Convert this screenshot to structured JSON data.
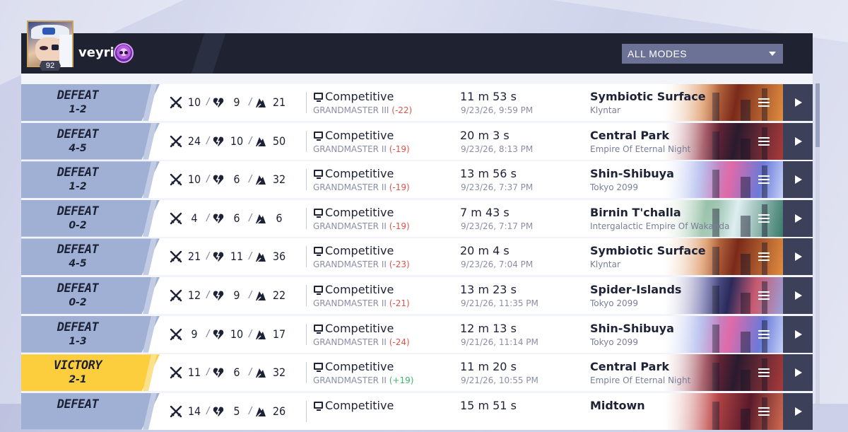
{
  "header": {
    "username": "veyri",
    "level": "92",
    "mode_filter": "ALL MODES"
  },
  "matches": [
    {
      "result": "DEFEAT",
      "score": "1-2",
      "kills": "10",
      "deaths": "9",
      "assists": "21",
      "mode": "Competitive",
      "rank": "GRANDMASTER III",
      "delta": "(-22)",
      "delta_sign": "neg",
      "duration": "11 m 53 s",
      "datetime": "9/23/26, 9:59 PM",
      "map": "Symbiotic Surface",
      "region": "Klyntar",
      "map_style": "symbiotic"
    },
    {
      "result": "DEFEAT",
      "score": "4-5",
      "kills": "24",
      "deaths": "10",
      "assists": "50",
      "mode": "Competitive",
      "rank": "GRANDMASTER II",
      "delta": "(-19)",
      "delta_sign": "neg",
      "duration": "20 m 3 s",
      "datetime": "9/23/26, 8:13 PM",
      "map": "Central Park",
      "region": "Empire Of Eternal Night",
      "map_style": "central"
    },
    {
      "result": "DEFEAT",
      "score": "1-2",
      "kills": "10",
      "deaths": "6",
      "assists": "32",
      "mode": "Competitive",
      "rank": "GRANDMASTER II",
      "delta": "(-19)",
      "delta_sign": "neg",
      "duration": "13 m 56 s",
      "datetime": "9/23/26, 7:37 PM",
      "map": "Shin-Shibuya",
      "region": "Tokyo 2099",
      "map_style": "shibuya"
    },
    {
      "result": "DEFEAT",
      "score": "0-2",
      "kills": "4",
      "deaths": "6",
      "assists": "6",
      "mode": "Competitive",
      "rank": "GRANDMASTER II",
      "delta": "(-19)",
      "delta_sign": "neg",
      "duration": "7 m 43 s",
      "datetime": "9/23/26, 7:17 PM",
      "map": "Birnin T'challa",
      "region": "Intergalactic Empire Of Wakanda",
      "map_style": "birnin"
    },
    {
      "result": "DEFEAT",
      "score": "4-5",
      "kills": "21",
      "deaths": "11",
      "assists": "36",
      "mode": "Competitive",
      "rank": "GRANDMASTER II",
      "delta": "(-23)",
      "delta_sign": "neg",
      "duration": "20 m 4 s",
      "datetime": "9/23/26, 7:04 PM",
      "map": "Symbiotic Surface",
      "region": "Klyntar",
      "map_style": "symbiotic"
    },
    {
      "result": "DEFEAT",
      "score": "0-2",
      "kills": "12",
      "deaths": "9",
      "assists": "22",
      "mode": "Competitive",
      "rank": "GRANDMASTER II",
      "delta": "(-21)",
      "delta_sign": "neg",
      "duration": "13 m 23 s",
      "datetime": "9/21/26, 11:35 PM",
      "map": "Spider-Islands",
      "region": "Tokyo 2099",
      "map_style": "spider"
    },
    {
      "result": "DEFEAT",
      "score": "1-3",
      "kills": "9",
      "deaths": "10",
      "assists": "17",
      "mode": "Competitive",
      "rank": "GRANDMASTER II",
      "delta": "(-24)",
      "delta_sign": "neg",
      "duration": "12 m 13 s",
      "datetime": "9/21/26, 11:14 PM",
      "map": "Shin-Shibuya",
      "region": "Tokyo 2099",
      "map_style": "shibuya"
    },
    {
      "result": "VICTORY",
      "score": "2-1",
      "kills": "11",
      "deaths": "6",
      "assists": "32",
      "mode": "Competitive",
      "rank": "GRANDMASTER II",
      "delta": "(+19)",
      "delta_sign": "pos",
      "duration": "11 m 20 s",
      "datetime": "9/21/26, 10:55 PM",
      "map": "Central Park",
      "region": "Empire Of Eternal Night",
      "map_style": "central"
    },
    {
      "result": "DEFEAT",
      "score": "",
      "kills": "14",
      "deaths": "5",
      "assists": "26",
      "mode": "Competitive",
      "rank": "",
      "delta": "",
      "delta_sign": "neg",
      "duration": "15 m 51 s",
      "datetime": "",
      "map": "Midtown",
      "region": "",
      "map_style": "midtown"
    }
  ]
}
